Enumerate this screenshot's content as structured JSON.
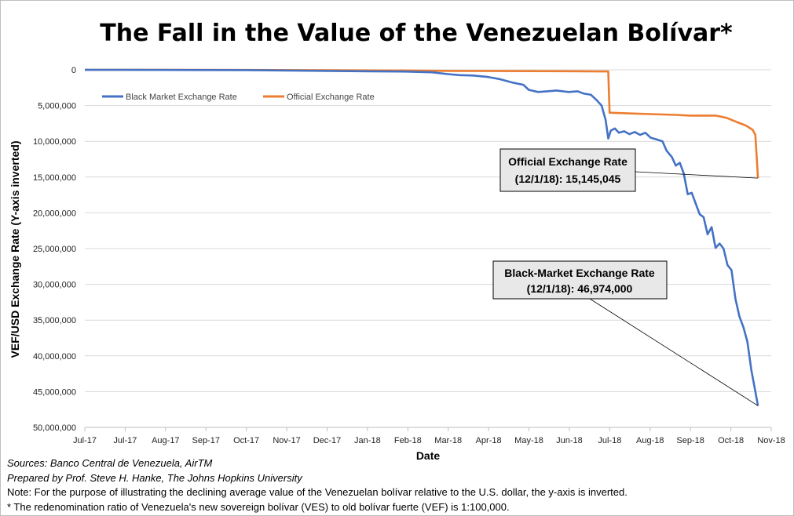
{
  "chart_data": {
    "type": "line",
    "title": "The Fall in the Value of the Venezuelan Bolívar*",
    "xlabel": "Date",
    "ylabel": "VEF/USD Exchange Rate (Y-axis inverted)",
    "y_inverted": true,
    "ylim": [
      0,
      50000000
    ],
    "yticks": [
      0,
      5000000,
      10000000,
      15000000,
      20000000,
      25000000,
      30000000,
      35000000,
      40000000,
      45000000,
      50000000
    ],
    "ytick_labels": [
      "0",
      "5,000,000",
      "10,000,000",
      "15,000,000",
      "20,000,000",
      "25,000,000",
      "30,000,000",
      "35,000,000",
      "40,000,000",
      "45,000,000",
      "50,000,000"
    ],
    "xlim": [
      "2017-07-01",
      "2018-12-01"
    ],
    "xtick_labels": [
      "Jul-17",
      "Jul-17",
      "Aug-17",
      "Sep-17",
      "Oct-17",
      "Nov-17",
      "Dec-17",
      "Jan-18",
      "Feb-18",
      "Mar-18",
      "Apr-18",
      "May-18",
      "Jun-18",
      "Jul-18",
      "Aug-18",
      "Sep-18",
      "Oct-18",
      "Nov-18"
    ],
    "grid": true,
    "legend_position": "top-left",
    "series": [
      {
        "name": "Black Market Exchange Rate",
        "color": "#4472C4",
        "points": [
          [
            "2017-07-01",
            9000
          ],
          [
            "2017-08-01",
            15000
          ],
          [
            "2017-09-01",
            19000
          ],
          [
            "2017-10-01",
            30000
          ],
          [
            "2017-11-01",
            45000
          ],
          [
            "2017-12-01",
            100000
          ],
          [
            "2018-01-01",
            150000
          ],
          [
            "2018-02-01",
            210000
          ],
          [
            "2018-03-01",
            250000
          ],
          [
            "2018-03-20",
            350000
          ],
          [
            "2018-04-01",
            600000
          ],
          [
            "2018-04-10",
            750000
          ],
          [
            "2018-04-20",
            800000
          ],
          [
            "2018-05-01",
            1000000
          ],
          [
            "2018-05-10",
            1300000
          ],
          [
            "2018-05-20",
            1800000
          ],
          [
            "2018-05-28",
            2100000
          ],
          [
            "2018-06-01",
            2800000
          ],
          [
            "2018-06-08",
            3100000
          ],
          [
            "2018-06-15",
            3000000
          ],
          [
            "2018-06-22",
            2900000
          ],
          [
            "2018-07-01",
            3100000
          ],
          [
            "2018-07-08",
            3000000
          ],
          [
            "2018-07-12",
            3300000
          ],
          [
            "2018-07-18",
            3500000
          ],
          [
            "2018-07-22",
            4200000
          ],
          [
            "2018-07-26",
            5000000
          ],
          [
            "2018-07-29",
            7000000
          ],
          [
            "2018-07-31",
            9600000
          ],
          [
            "2018-08-02",
            8500000
          ],
          [
            "2018-08-05",
            8200000
          ],
          [
            "2018-08-08",
            8800000
          ],
          [
            "2018-08-12",
            8600000
          ],
          [
            "2018-08-16",
            9000000
          ],
          [
            "2018-08-20",
            8700000
          ],
          [
            "2018-08-24",
            9100000
          ],
          [
            "2018-08-28",
            8800000
          ],
          [
            "2018-09-01",
            9500000
          ],
          [
            "2018-09-05",
            9700000
          ],
          [
            "2018-09-10",
            10000000
          ],
          [
            "2018-09-13",
            11300000
          ],
          [
            "2018-09-17",
            12200000
          ],
          [
            "2018-09-20",
            13400000
          ],
          [
            "2018-09-23",
            13000000
          ],
          [
            "2018-09-26",
            14500000
          ],
          [
            "2018-09-29",
            17400000
          ],
          [
            "2018-10-02",
            17200000
          ],
          [
            "2018-10-05",
            18700000
          ],
          [
            "2018-10-08",
            20200000
          ],
          [
            "2018-10-11",
            20600000
          ],
          [
            "2018-10-14",
            23000000
          ],
          [
            "2018-10-17",
            22000000
          ],
          [
            "2018-10-20",
            24900000
          ],
          [
            "2018-10-23",
            24300000
          ],
          [
            "2018-10-26",
            25000000
          ],
          [
            "2018-10-29",
            27300000
          ],
          [
            "2018-11-01",
            28000000
          ],
          [
            "2018-11-04",
            32000000
          ],
          [
            "2018-11-07",
            34500000
          ],
          [
            "2018-11-10",
            36000000
          ],
          [
            "2018-11-13",
            38000000
          ],
          [
            "2018-11-16",
            42000000
          ],
          [
            "2018-11-19",
            45000000
          ],
          [
            "2018-11-21",
            46974000
          ]
        ]
      },
      {
        "name": "Official Exchange Rate",
        "color": "#ED7D31",
        "points": [
          [
            "2017-07-01",
            3000
          ],
          [
            "2017-09-01",
            5000
          ],
          [
            "2017-11-01",
            20000
          ],
          [
            "2018-01-01",
            50000
          ],
          [
            "2018-03-01",
            100000
          ],
          [
            "2018-04-01",
            150000
          ],
          [
            "2018-07-01",
            200000
          ],
          [
            "2018-07-31",
            230000
          ],
          [
            "2018-08-01",
            6000000
          ],
          [
            "2018-08-15",
            6100000
          ],
          [
            "2018-09-01",
            6200000
          ],
          [
            "2018-09-20",
            6300000
          ],
          [
            "2018-10-01",
            6400000
          ],
          [
            "2018-10-20",
            6400000
          ],
          [
            "2018-10-28",
            6700000
          ],
          [
            "2018-11-05",
            7300000
          ],
          [
            "2018-11-12",
            7800000
          ],
          [
            "2018-11-17",
            8400000
          ],
          [
            "2018-11-19",
            9100000
          ],
          [
            "2018-11-21",
            15145045
          ]
        ]
      }
    ],
    "annotations": [
      {
        "line1": "Official Exchange Rate",
        "line2": "(12/1/18): 15,145,045"
      },
      {
        "line1": "Black-Market Exchange Rate",
        "line2": "(12/1/18): 46,974,000"
      }
    ]
  },
  "footnotes": {
    "sources": "Sources: Banco Central de Venezuela, AirTM",
    "prepared_by": "Prepared by Prof. Steve H. Hanke, The Johns Hopkins University",
    "note": "Note: For the purpose of illustrating the declining average value of the Venezuelan bolívar relative to the U.S. dollar, the y-axis is inverted.",
    "redenomination": "* The redenomination ratio of Venezuela's new sovereign bolívar (VES) to old bolívar fuerte (VEF) is 1:100,000."
  }
}
